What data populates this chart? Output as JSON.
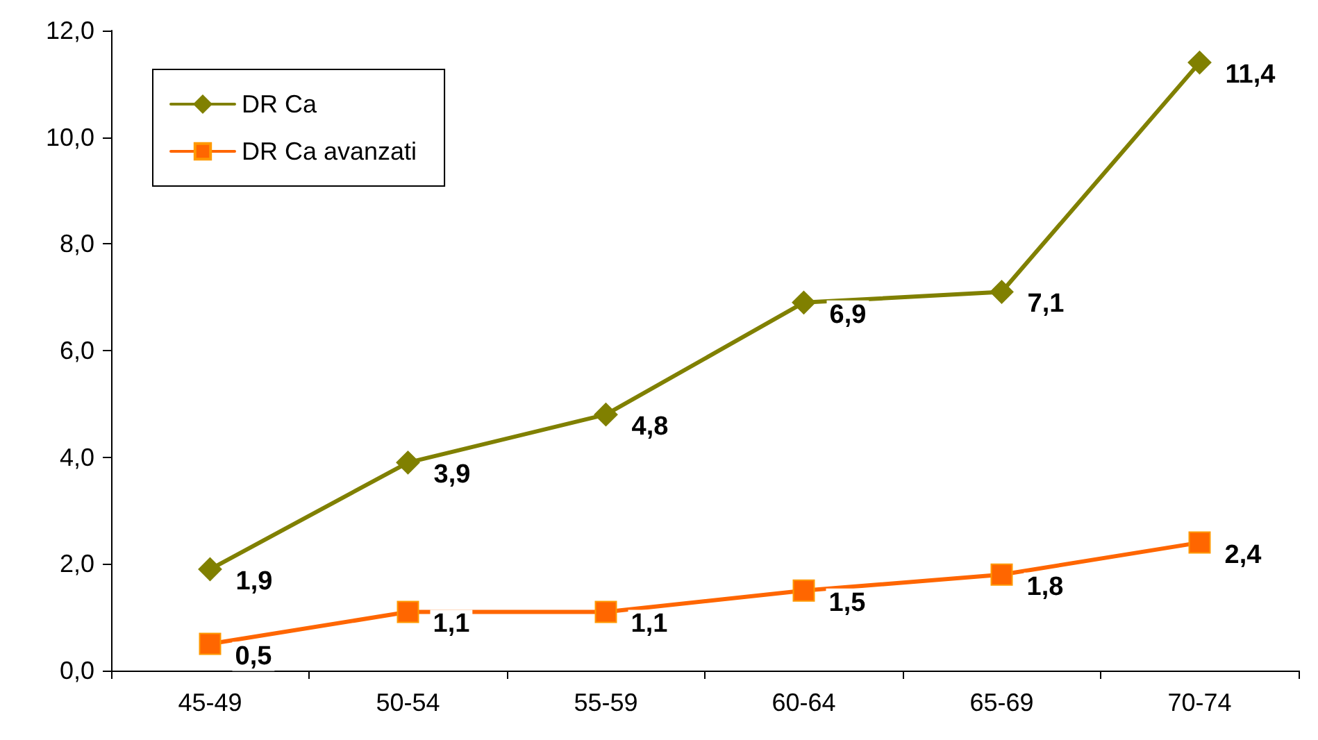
{
  "chart_data": {
    "type": "line",
    "categories": [
      "45-49",
      "50-54",
      "55-59",
      "60-64",
      "65-69",
      "70-74"
    ],
    "series": [
      {
        "name": "DR Ca",
        "color": "#808000",
        "marker": "diamond",
        "values": [
          1.9,
          3.9,
          4.8,
          6.9,
          7.1,
          11.4
        ],
        "value_labels": [
          "1,9",
          "3,9",
          "4,8",
          "6,9",
          "7,1",
          "11,4"
        ]
      },
      {
        "name": "DR Ca avanzati",
        "color": "#ff6600",
        "marker": "square",
        "values": [
          0.5,
          1.1,
          1.1,
          1.5,
          1.8,
          2.4
        ],
        "value_labels": [
          "0,5",
          "1,1",
          "1,1",
          "1,5",
          "1,8",
          "2,4"
        ]
      }
    ],
    "ylim": [
      0,
      12
    ],
    "yticks": [
      {
        "value": 0,
        "label": "0,0"
      },
      {
        "value": 2,
        "label": "2,0"
      },
      {
        "value": 4,
        "label": "4,0"
      },
      {
        "value": 6,
        "label": "6,0"
      },
      {
        "value": 8,
        "label": "8,0"
      },
      {
        "value": 10,
        "label": "10,0"
      },
      {
        "value": 12,
        "label": "12,0"
      }
    ],
    "grid": false,
    "legend": "top left",
    "line_style": "solid"
  }
}
